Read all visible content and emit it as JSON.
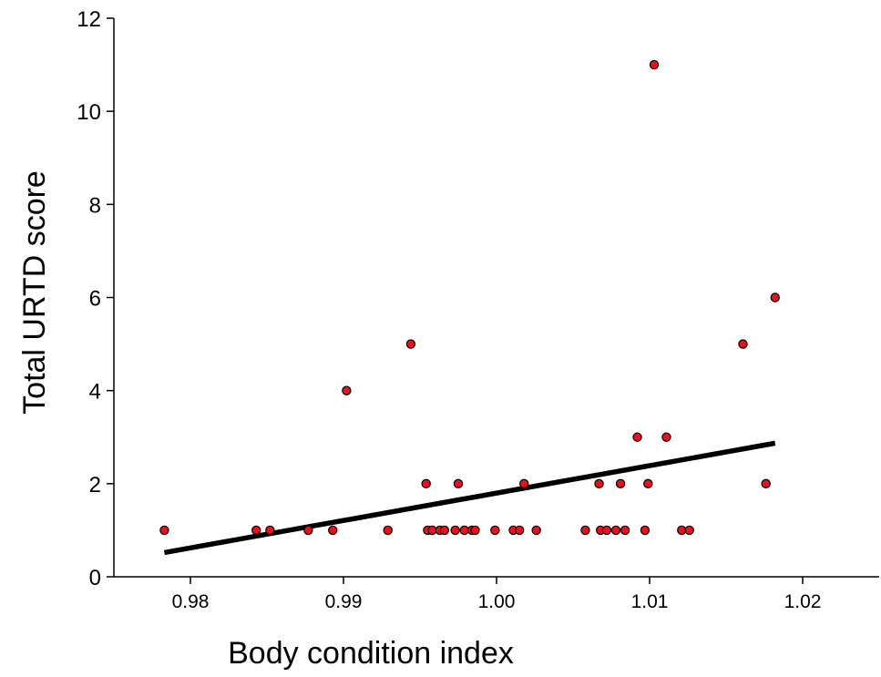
{
  "chart_data": {
    "type": "scatter",
    "title": "",
    "xlabel": "Body condition index",
    "ylabel": "Total URTD score",
    "xlim": [
      0.975,
      1.025
    ],
    "ylim": [
      0,
      12
    ],
    "xticks": [
      0.98,
      0.99,
      1.0,
      1.01,
      1.02
    ],
    "xtick_labels": [
      "0.98",
      "0.99",
      "1.00",
      "1.01",
      "1.02"
    ],
    "yticks": [
      0,
      2,
      4,
      6,
      8,
      10,
      12
    ],
    "ytick_labels": [
      "0",
      "2",
      "4",
      "6",
      "8",
      "10",
      "12"
    ],
    "grid": false,
    "legend": "none",
    "marker_color": "#e8101a",
    "marker_edge_color": "#000000",
    "line_color": "#000000",
    "points": [
      {
        "x": 0.9783,
        "y": 1
      },
      {
        "x": 0.9843,
        "y": 1
      },
      {
        "x": 0.9852,
        "y": 1
      },
      {
        "x": 0.9877,
        "y": 1
      },
      {
        "x": 0.9893,
        "y": 1
      },
      {
        "x": 0.9902,
        "y": 4
      },
      {
        "x": 0.9929,
        "y": 1
      },
      {
        "x": 0.9944,
        "y": 5
      },
      {
        "x": 0.9954,
        "y": 2
      },
      {
        "x": 0.9955,
        "y": 1
      },
      {
        "x": 0.9958,
        "y": 1
      },
      {
        "x": 0.9963,
        "y": 1
      },
      {
        "x": 0.9966,
        "y": 1
      },
      {
        "x": 0.9973,
        "y": 1
      },
      {
        "x": 0.9975,
        "y": 2
      },
      {
        "x": 0.9979,
        "y": 1
      },
      {
        "x": 0.9984,
        "y": 1
      },
      {
        "x": 0.9986,
        "y": 1
      },
      {
        "x": 0.9999,
        "y": 1
      },
      {
        "x": 1.0011,
        "y": 1
      },
      {
        "x": 1.0015,
        "y": 1
      },
      {
        "x": 1.0018,
        "y": 2
      },
      {
        "x": 1.0026,
        "y": 1
      },
      {
        "x": 1.0058,
        "y": 1
      },
      {
        "x": 1.0067,
        "y": 2
      },
      {
        "x": 1.0068,
        "y": 1
      },
      {
        "x": 1.0072,
        "y": 1
      },
      {
        "x": 1.0078,
        "y": 1
      },
      {
        "x": 1.0081,
        "y": 2
      },
      {
        "x": 1.0084,
        "y": 1
      },
      {
        "x": 1.0092,
        "y": 3
      },
      {
        "x": 1.0097,
        "y": 1
      },
      {
        "x": 1.0099,
        "y": 2
      },
      {
        "x": 1.0103,
        "y": 11
      },
      {
        "x": 1.0111,
        "y": 3
      },
      {
        "x": 1.0121,
        "y": 1
      },
      {
        "x": 1.0126,
        "y": 1
      },
      {
        "x": 1.0161,
        "y": 5
      },
      {
        "x": 1.0176,
        "y": 2
      },
      {
        "x": 1.0182,
        "y": 6
      }
    ],
    "trend_line": {
      "x": [
        0.9783,
        1.0182
      ],
      "y": [
        0.52,
        2.87
      ]
    }
  }
}
